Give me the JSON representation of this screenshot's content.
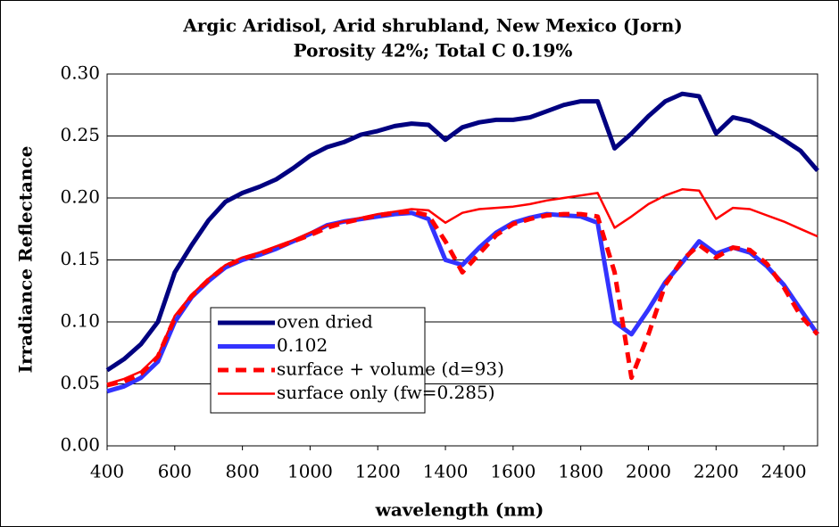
{
  "chart_data": {
    "type": "line",
    "title": "Argic Aridisol, Arid shrubland, New Mexico (Jorn)",
    "subtitle": "Porosity 42%;  Total C 0.19%",
    "x_label": "wavelength (nm)",
    "y_label": "Irradiance Reflectance",
    "x": [
      400,
      450,
      500,
      550,
      600,
      650,
      700,
      750,
      800,
      850,
      900,
      950,
      1000,
      1050,
      1100,
      1150,
      1200,
      1250,
      1300,
      1350,
      1400,
      1450,
      1500,
      1550,
      1600,
      1650,
      1700,
      1750,
      1800,
      1850,
      1900,
      1950,
      2000,
      2050,
      2100,
      2150,
      2200,
      2250,
      2300,
      2350,
      2400,
      2450,
      2500
    ],
    "series": [
      {
        "name": "oven dried",
        "color": "#000080",
        "width": 5,
        "dash": false,
        "values": [
          0.061,
          0.07,
          0.082,
          0.1,
          0.14,
          0.162,
          0.182,
          0.197,
          0.204,
          0.209,
          0.215,
          0.224,
          0.234,
          0.241,
          0.245,
          0.251,
          0.254,
          0.258,
          0.26,
          0.259,
          0.247,
          0.257,
          0.261,
          0.263,
          0.263,
          0.265,
          0.27,
          0.275,
          0.278,
          0.278,
          0.24,
          0.252,
          0.266,
          0.278,
          0.284,
          0.282,
          0.252,
          0.265,
          0.262,
          0.255,
          0.247,
          0.238,
          0.222
        ]
      },
      {
        "name": "0.102",
        "color": "#3333ff",
        "width": 5,
        "dash": false,
        "values": [
          0.044,
          0.048,
          0.055,
          0.068,
          0.1,
          0.12,
          0.133,
          0.144,
          0.15,
          0.154,
          0.159,
          0.165,
          0.171,
          0.178,
          0.181,
          0.183,
          0.185,
          0.187,
          0.188,
          0.183,
          0.15,
          0.146,
          0.16,
          0.172,
          0.18,
          0.184,
          0.187,
          0.186,
          0.185,
          0.18,
          0.1,
          0.09,
          0.11,
          0.132,
          0.148,
          0.165,
          0.155,
          0.16,
          0.156,
          0.145,
          0.13,
          0.11,
          0.09
        ]
      },
      {
        "name": "surface + volume (d=93)",
        "color": "#ff0000",
        "width": 5,
        "dash": true,
        "values": [
          0.049,
          0.052,
          0.058,
          0.072,
          0.103,
          0.121,
          0.134,
          0.145,
          0.151,
          0.155,
          0.16,
          0.165,
          0.17,
          0.176,
          0.18,
          0.183,
          0.186,
          0.188,
          0.189,
          0.186,
          0.165,
          0.14,
          0.155,
          0.17,
          0.179,
          0.183,
          0.186,
          0.187,
          0.187,
          0.185,
          0.14,
          0.055,
          0.09,
          0.13,
          0.15,
          0.162,
          0.152,
          0.16,
          0.158,
          0.147,
          0.128,
          0.105,
          0.09
        ]
      },
      {
        "name": "surface only (fw=0.285)",
        "color": "#ff0000",
        "width": 2.5,
        "dash": false,
        "values": [
          0.05,
          0.054,
          0.06,
          0.073,
          0.105,
          0.122,
          0.135,
          0.146,
          0.152,
          0.156,
          0.161,
          0.166,
          0.172,
          0.178,
          0.181,
          0.184,
          0.187,
          0.189,
          0.191,
          0.19,
          0.18,
          0.188,
          0.191,
          0.192,
          0.193,
          0.195,
          0.198,
          0.2,
          0.202,
          0.204,
          0.176,
          0.185,
          0.195,
          0.202,
          0.207,
          0.206,
          0.183,
          0.192,
          0.191,
          0.186,
          0.181,
          0.175,
          0.169
        ]
      }
    ],
    "xlim": [
      400,
      2500
    ],
    "xticks": [
      400,
      600,
      800,
      1000,
      1200,
      1400,
      1600,
      1800,
      2000,
      2200,
      2400
    ],
    "ylim": [
      0,
      0.3
    ],
    "yticks": [
      {
        "value": 0,
        "label": "0.00"
      },
      {
        "value": 0.05,
        "label": "0.05"
      },
      {
        "value": 0.1,
        "label": "0.10"
      },
      {
        "value": 0.15,
        "label": "0.15"
      },
      {
        "value": 0.2,
        "label": "0.20"
      },
      {
        "value": 0.25,
        "label": "0.25"
      },
      {
        "value": 0.3,
        "label": "0.30"
      }
    ],
    "grid": true
  }
}
